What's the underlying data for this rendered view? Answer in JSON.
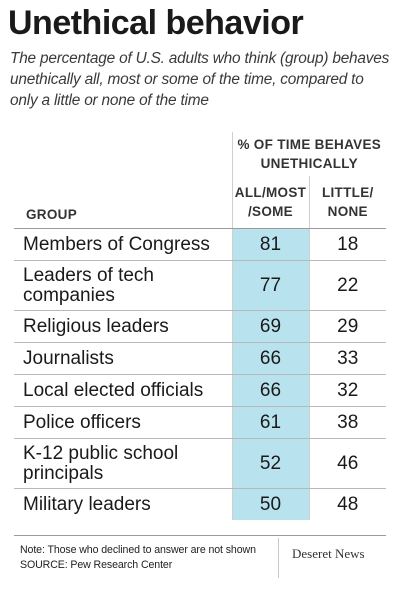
{
  "header": {
    "title": "Unethical behavior",
    "subtitle": "The percentage of U.S. adults who think (group) behaves unethically all, most or some of the time, compared to only a little or none of the time"
  },
  "table": {
    "super_header_line1": "% OF TIME BEHAVES",
    "super_header_line2": "UNETHICALLY",
    "col_group": "GROUP",
    "col_all_line1": "ALL/MOST",
    "col_all_line2": "/SOME",
    "col_little_line1": "LITTLE/",
    "col_little_line2": "NONE"
  },
  "chart_data": {
    "type": "table",
    "title": "Unethical behavior",
    "columns": [
      "GROUP",
      "ALL/MOST/SOME",
      "LITTLE/NONE"
    ],
    "rows": [
      {
        "group": "Members of Congress",
        "all_most_some": 81,
        "little_none": 18
      },
      {
        "group": "Leaders of tech companies",
        "all_most_some": 77,
        "little_none": 22
      },
      {
        "group": "Religious leaders",
        "all_most_some": 69,
        "little_none": 29
      },
      {
        "group": "Journalists",
        "all_most_some": 66,
        "little_none": 33
      },
      {
        "group": "Local elected officials",
        "all_most_some": 66,
        "little_none": 32
      },
      {
        "group": "Police officers",
        "all_most_some": 61,
        "little_none": 38
      },
      {
        "group": "K-12 public school principals",
        "all_most_some": 52,
        "little_none": 46
      },
      {
        "group": "Military leaders",
        "all_most_some": 50,
        "little_none": 48
      }
    ],
    "highlight_color": "#b9e2ef"
  },
  "footer": {
    "note": "Note: Those who declined to answer are not shown",
    "source": "SOURCE: Pew Research Center",
    "credit": "Deseret News"
  }
}
